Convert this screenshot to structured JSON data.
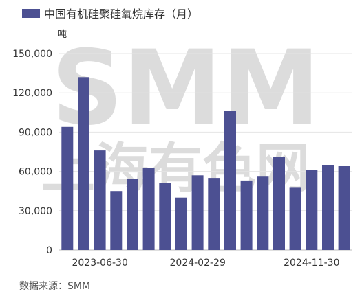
{
  "chart_data": {
    "type": "bar",
    "title": "中国有机硅聚硅氧烷库存（月）",
    "unit_label": "吨",
    "series": [
      {
        "name": "中国有机硅聚硅氧烷库存（月）",
        "color": "#4c5092",
        "values": [
          94000,
          132000,
          76000,
          45000,
          54000,
          62500,
          51000,
          40000,
          57000,
          55000,
          106000,
          53000,
          56000,
          71000,
          47500,
          61000,
          65000,
          64000
        ]
      }
    ],
    "x_tick_labels": [
      "2023-06-30",
      "2024-02-29",
      "2024-11-30"
    ],
    "y_ticks": [
      "0",
      "30,000",
      "60,000",
      "90,000",
      "120,000",
      "150,000"
    ],
    "ylim": [
      0,
      150000
    ],
    "grid": true
  },
  "watermark": {
    "line1": "SMM",
    "line2": "上海有色网"
  },
  "source": "数据来源：SMM"
}
